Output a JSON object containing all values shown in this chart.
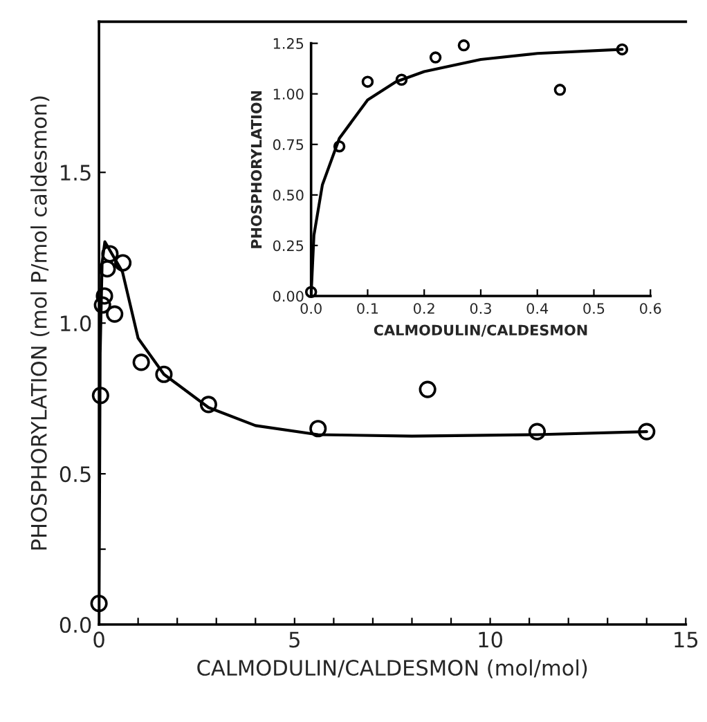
{
  "chart_data": [
    {
      "type": "scatter",
      "xlabel": "CALMODULIN/CALDESMON (mol/mol)",
      "ylabel": "PHOSPHORYLATION (mol P/mol caldesmon)",
      "xlim": [
        0,
        15
      ],
      "ylim": [
        0,
        2.0
      ],
      "xticks": [
        0,
        {
          "value": 1,
          "label": null
        },
        {
          "value": 2,
          "label": null
        },
        {
          "value": 3,
          "label": null
        },
        {
          "value": 4,
          "label": null
        },
        5,
        {
          "value": 6,
          "label": null
        },
        {
          "value": 7,
          "label": null
        },
        {
          "value": 8,
          "label": null
        },
        {
          "value": 9,
          "label": null
        },
        10,
        {
          "value": 11,
          "label": null
        },
        {
          "value": 12,
          "label": null
        },
        {
          "value": 13,
          "label": null
        },
        {
          "value": 14,
          "label": null
        },
        15
      ],
      "yticks": [
        {
          "value": 0,
          "label": "0.0"
        },
        {
          "value": 0.25,
          "label": null
        },
        {
          "value": 0.5,
          "label": "0.5"
        },
        {
          "value": 1.0,
          "label": "1.0"
        },
        {
          "value": 1.5,
          "label": "1.5"
        }
      ],
      "grid": false,
      "legend": false,
      "series": [
        {
          "marker": "circle",
          "color": "#000000",
          "x": [
            0,
            0.04,
            0.09,
            0.14,
            0.21,
            0.28,
            0.4,
            0.61,
            1.08,
            1.66,
            2.8,
            5.6,
            8.4,
            11.2,
            14.0
          ],
          "values": [
            0.07,
            0.76,
            1.06,
            1.09,
            1.18,
            1.23,
            1.03,
            1.2,
            0.87,
            0.83,
            0.73,
            0.65,
            0.78,
            0.64,
            0.64
          ]
        },
        {
          "type": "line",
          "line_style": "solid",
          "color": "#000000",
          "x": [
            0,
            0.03,
            0.08,
            0.15,
            0.6,
            1.0,
            1.66,
            2.8,
            4.0,
            5.6,
            8.0,
            11.2,
            14.0
          ],
          "values": [
            0.0,
            0.9,
            1.2,
            1.27,
            1.17,
            0.95,
            0.83,
            0.72,
            0.66,
            0.63,
            0.625,
            0.63,
            0.64
          ]
        }
      ]
    },
    {
      "type": "scatter",
      "xlabel": "CALMODULIN/CALDESMON",
      "ylabel": "PHOSPHORYLATION",
      "xlim": [
        0,
        0.6
      ],
      "ylim": [
        0,
        1.25
      ],
      "xticks": [
        {
          "value": 0,
          "label": "0.0"
        },
        {
          "value": 0.1,
          "label": "0.1"
        },
        {
          "value": 0.2,
          "label": "0.2"
        },
        {
          "value": 0.3,
          "label": "0.3"
        },
        {
          "value": 0.4,
          "label": "0.4"
        },
        {
          "value": 0.5,
          "label": "0.5"
        },
        {
          "value": 0.6,
          "label": "0.6"
        }
      ],
      "yticks": [
        {
          "value": 0,
          "label": "0.00"
        },
        {
          "value": 0.25,
          "label": "0.25"
        },
        {
          "value": 0.5,
          "label": "0.50"
        },
        {
          "value": 0.75,
          "label": "0.75"
        },
        {
          "value": 1.0,
          "label": "1.00"
        },
        {
          "value": 1.25,
          "label": "1.25"
        }
      ],
      "grid": false,
      "legend": false,
      "series": [
        {
          "marker": "circle",
          "color": "#000000",
          "x": [
            0,
            0.05,
            0.1,
            0.16,
            0.22,
            0.27,
            0.44,
            0.55
          ],
          "values": [
            0.02,
            0.74,
            1.06,
            1.07,
            1.18,
            1.24,
            1.02,
            1.22
          ]
        },
        {
          "type": "line",
          "line_style": "solid",
          "color": "#000000",
          "x": [
            0,
            0.005,
            0.02,
            0.05,
            0.1,
            0.15,
            0.2,
            0.3,
            0.4,
            0.55
          ],
          "values": [
            0.0,
            0.3,
            0.55,
            0.78,
            0.97,
            1.06,
            1.11,
            1.17,
            1.2,
            1.22
          ]
        }
      ]
    }
  ]
}
